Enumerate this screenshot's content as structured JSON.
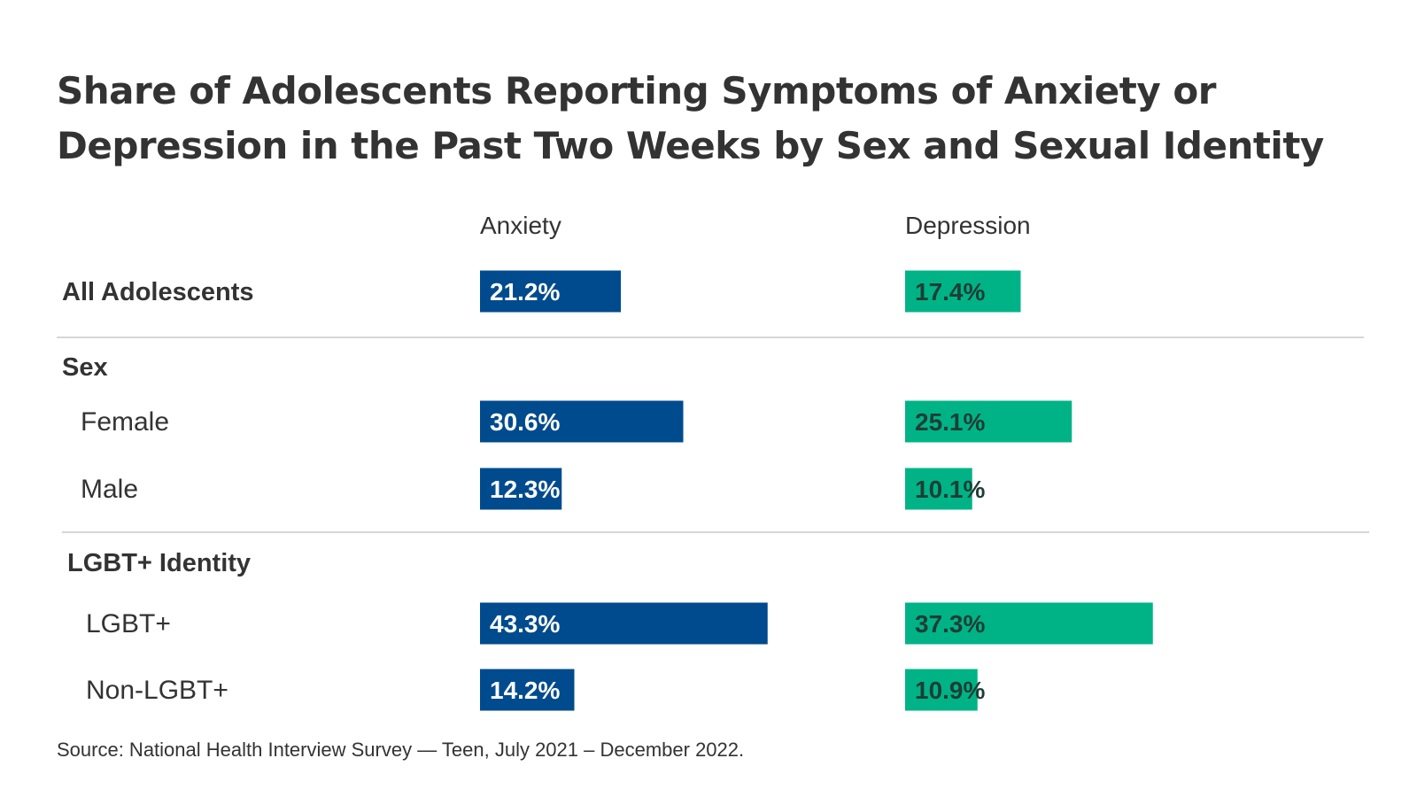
{
  "chart_data": {
    "type": "bar",
    "title_lines": [
      "Share of Adolescents Reporting Symptoms of Anxiety or",
      "Depression in the Past Two Weeks by Sex and Sexual Identity"
    ],
    "series": [
      {
        "name": "Anxiety",
        "color": "#004b8d"
      },
      {
        "name": "Depression",
        "color": "#00b386"
      }
    ],
    "groups": [
      {
        "heading": "",
        "rows": [
          {
            "label": "All Adolescents",
            "values": [
              21.2,
              17.4
            ],
            "labels": [
              "21.2%",
              "17.4%"
            ]
          }
        ]
      },
      {
        "heading": "Sex",
        "rows": [
          {
            "label": "Female",
            "values": [
              30.6,
              25.1
            ],
            "labels": [
              "30.6%",
              "25.1%"
            ]
          },
          {
            "label": "Male",
            "values": [
              12.3,
              10.1
            ],
            "labels": [
              "12.3%",
              "10.1%"
            ]
          }
        ]
      },
      {
        "heading": "LGBT+ Identity",
        "rows": [
          {
            "label": "LGBT+",
            "values": [
              43.3,
              37.3
            ],
            "labels": [
              "43.3%",
              "37.3%"
            ]
          },
          {
            "label": "Non-LGBT+",
            "values": [
              14.2,
              10.9
            ],
            "labels": [
              "14.2%",
              "10.9%"
            ]
          }
        ]
      }
    ],
    "source": "Source: National Health Interview Survey — Teen, July 2021 – December 2022."
  }
}
